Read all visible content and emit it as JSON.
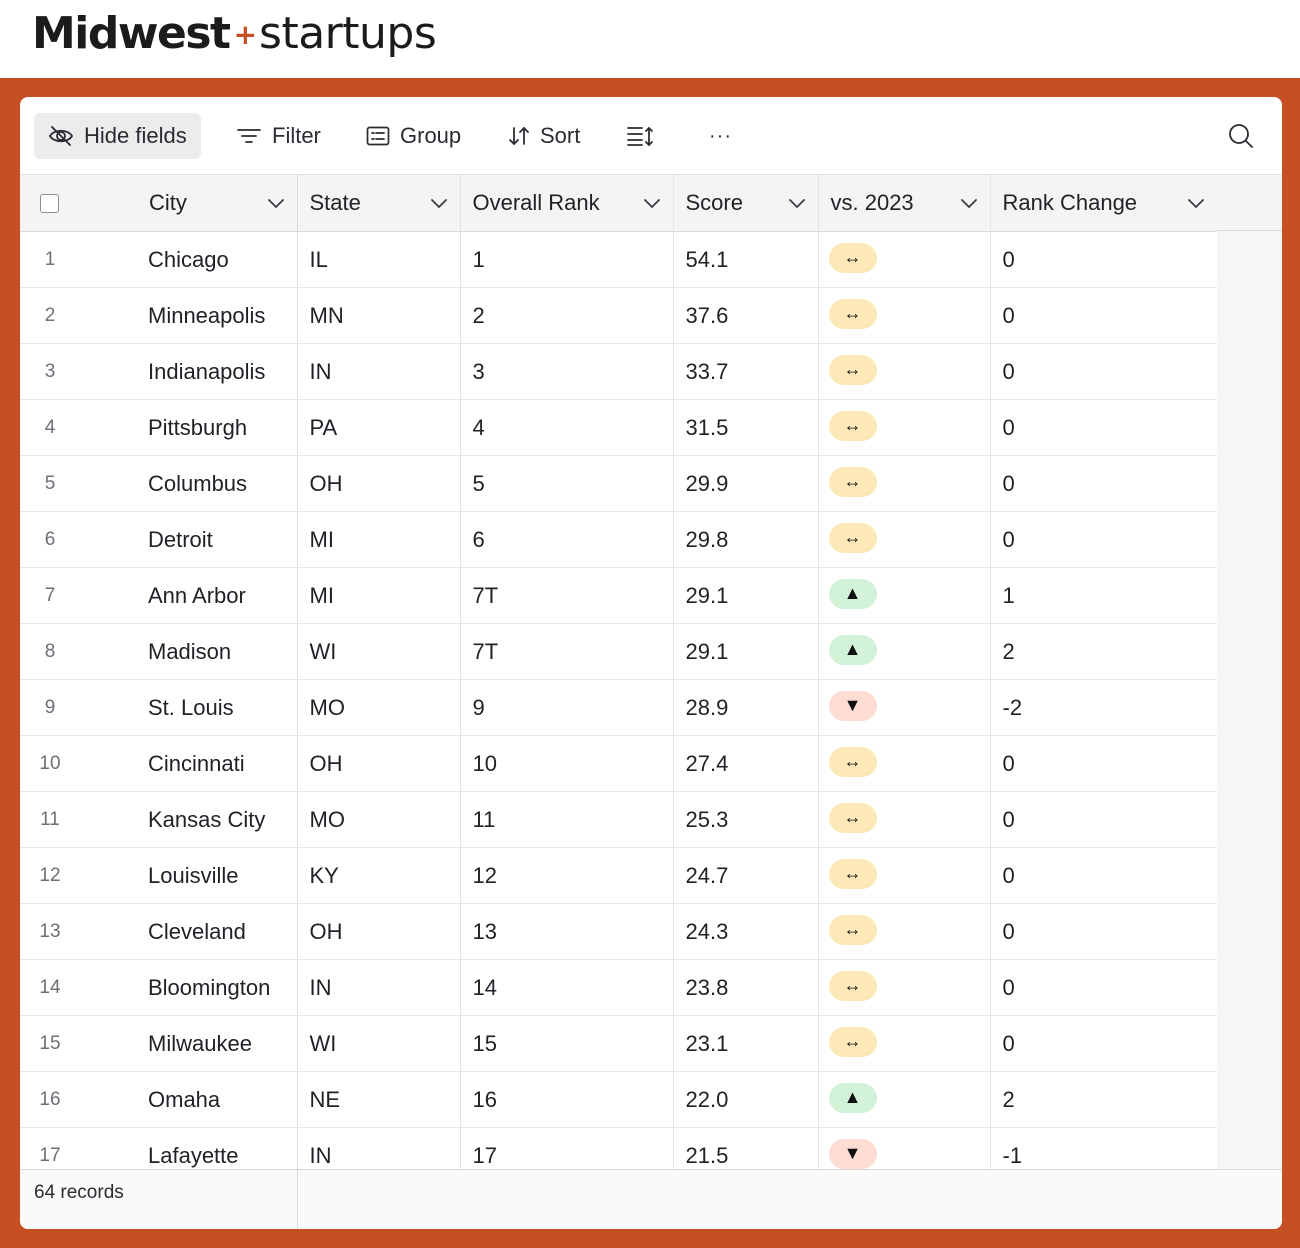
{
  "brand": {
    "part1": "Midwest",
    "plus": "+",
    "part2": "startups"
  },
  "colors": {
    "accent": "#c65024",
    "same": "#fde9b7",
    "up": "#d2f3d8",
    "down": "#fcdcd3"
  },
  "toolbar": {
    "hide_fields": "Hide fields",
    "filter": "Filter",
    "group": "Group",
    "sort": "Sort",
    "more": "···"
  },
  "columns": [
    "City",
    "State",
    "Overall Rank",
    "Score",
    "vs. 2023",
    "Rank Change"
  ],
  "rows": [
    {
      "n": "1",
      "city": "Chicago",
      "state": "IL",
      "rank": "1",
      "score": "54.1",
      "vs": "same",
      "change": "0"
    },
    {
      "n": "2",
      "city": "Minneapolis",
      "state": "MN",
      "rank": "2",
      "score": "37.6",
      "vs": "same",
      "change": "0"
    },
    {
      "n": "3",
      "city": "Indianapolis",
      "state": "IN",
      "rank": "3",
      "score": "33.7",
      "vs": "same",
      "change": "0"
    },
    {
      "n": "4",
      "city": "Pittsburgh",
      "state": "PA",
      "rank": "4",
      "score": "31.5",
      "vs": "same",
      "change": "0"
    },
    {
      "n": "5",
      "city": "Columbus",
      "state": "OH",
      "rank": "5",
      "score": "29.9",
      "vs": "same",
      "change": "0"
    },
    {
      "n": "6",
      "city": "Detroit",
      "state": "MI",
      "rank": "6",
      "score": "29.8",
      "vs": "same",
      "change": "0"
    },
    {
      "n": "7",
      "city": "Ann Arbor",
      "state": "MI",
      "rank": "7T",
      "score": "29.1",
      "vs": "up",
      "change": "1"
    },
    {
      "n": "8",
      "city": "Madison",
      "state": "WI",
      "rank": "7T",
      "score": "29.1",
      "vs": "up",
      "change": "2"
    },
    {
      "n": "9",
      "city": "St. Louis",
      "state": "MO",
      "rank": "9",
      "score": "28.9",
      "vs": "down",
      "change": "-2"
    },
    {
      "n": "10",
      "city": "Cincinnati",
      "state": "OH",
      "rank": "10",
      "score": "27.4",
      "vs": "same",
      "change": "0"
    },
    {
      "n": "11",
      "city": "Kansas City",
      "state": "MO",
      "rank": "11",
      "score": "25.3",
      "vs": "same",
      "change": "0"
    },
    {
      "n": "12",
      "city": "Louisville",
      "state": "KY",
      "rank": "12",
      "score": "24.7",
      "vs": "same",
      "change": "0"
    },
    {
      "n": "13",
      "city": "Cleveland",
      "state": "OH",
      "rank": "13",
      "score": "24.3",
      "vs": "same",
      "change": "0"
    },
    {
      "n": "14",
      "city": "Bloomington",
      "state": "IN",
      "rank": "14",
      "score": "23.8",
      "vs": "same",
      "change": "0"
    },
    {
      "n": "15",
      "city": "Milwaukee",
      "state": "WI",
      "rank": "15",
      "score": "23.1",
      "vs": "same",
      "change": "0"
    },
    {
      "n": "16",
      "city": "Omaha",
      "state": "NE",
      "rank": "16",
      "score": "22.0",
      "vs": "up",
      "change": "2"
    },
    {
      "n": "17",
      "city": "Lafayette",
      "state": "IN",
      "rank": "17",
      "score": "21.5",
      "vs": "down",
      "change": "-1"
    }
  ],
  "vs_symbols": {
    "same": "↔",
    "up": "▲",
    "down": "▼"
  },
  "footer": {
    "records": "64 records"
  }
}
